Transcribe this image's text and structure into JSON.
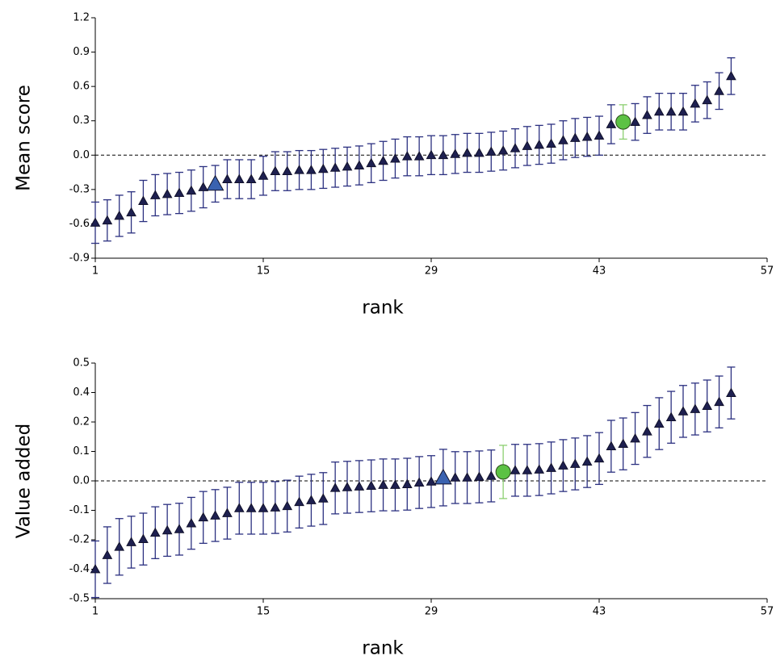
{
  "chart_data": [
    {
      "type": "scatter",
      "xlabel": "rank",
      "ylabel": "Mean score",
      "xlim": [
        1,
        57
      ],
      "xticks": [
        1,
        15,
        29,
        43,
        57
      ],
      "ylim": [
        -0.9,
        1.2
      ],
      "yticks": [
        -0.9,
        -0.6,
        -0.3,
        {
          "value": 0,
          "label": "0.0"
        },
        0.3,
        0.6,
        0.9,
        1.2
      ],
      "hline": 0,
      "series": [
        {
          "color": "#1e2050",
          "bar_color": "#2b3080",
          "marker": "triangle",
          "x": [
            1,
            2,
            3,
            4,
            5,
            6,
            7,
            8,
            9,
            10,
            12,
            13,
            14,
            15,
            16,
            17,
            18,
            19,
            20,
            21,
            22,
            23,
            24,
            25,
            26,
            27,
            28,
            29,
            30,
            31,
            32,
            33,
            34,
            35,
            36,
            37,
            38,
            39,
            40,
            41,
            42,
            43,
            44,
            46,
            47,
            48,
            49,
            50,
            51,
            52,
            53,
            54
          ],
          "values": [
            -0.59,
            -0.57,
            -0.53,
            -0.5,
            -0.4,
            -0.35,
            -0.34,
            -0.33,
            -0.31,
            -0.28,
            -0.21,
            -0.21,
            -0.21,
            -0.18,
            -0.14,
            -0.14,
            -0.13,
            -0.13,
            -0.12,
            -0.11,
            -0.1,
            -0.09,
            -0.07,
            -0.05,
            -0.03,
            -0.01,
            -0.01,
            0,
            0,
            0.01,
            0.02,
            0.02,
            0.03,
            0.04,
            0.06,
            0.08,
            0.09,
            0.1,
            0.13,
            0.15,
            0.16,
            0.17,
            0.27,
            0.29,
            0.35,
            0.38,
            0.38,
            0.38,
            0.45,
            0.48,
            0.56,
            0.69
          ],
          "errors": [
            0.18,
            0.18,
            0.18,
            0.18,
            0.18,
            0.18,
            0.18,
            0.18,
            0.18,
            0.18,
            0.17,
            0.17,
            0.17,
            0.17,
            0.17,
            0.17,
            0.17,
            0.17,
            0.17,
            0.17,
            0.17,
            0.17,
            0.17,
            0.17,
            0.17,
            0.17,
            0.17,
            0.17,
            0.17,
            0.17,
            0.17,
            0.17,
            0.17,
            0.17,
            0.17,
            0.17,
            0.17,
            0.17,
            0.17,
            0.17,
            0.17,
            0.17,
            0.17,
            0.16,
            0.16,
            0.16,
            0.16,
            0.16,
            0.16,
            0.16,
            0.16,
            0.16
          ]
        },
        {
          "color": "#3a62b0",
          "bar_color": "#2b3080",
          "marker": "big-triangle",
          "x": [
            11
          ],
          "values": [
            -0.25
          ],
          "errors": [
            0.16
          ]
        },
        {
          "color": "#5cc244",
          "bar_color": "#8ccf70",
          "marker": "circle",
          "x": [
            45
          ],
          "values": [
            0.29
          ],
          "errors": [
            0.15
          ]
        }
      ]
    },
    {
      "type": "scatter",
      "xlabel": "rank",
      "ylabel": "Value added",
      "xlim": [
        1,
        57
      ],
      "xticks": [
        1,
        15,
        29,
        43,
        57
      ],
      "ylim": [
        -0.5,
        0.5
      ],
      "yticks": [
        -0.5,
        {
          "value": -0.375,
          "label": "-0.4"
        },
        {
          "value": -0.25,
          "label": "-0.2"
        },
        {
          "value": -0.125,
          "label": "-0.1"
        },
        {
          "value": 0,
          "label": "0.0"
        },
        {
          "value": 0.125,
          "label": "0.1"
        },
        {
          "value": 0.25,
          "label": "0.2"
        },
        {
          "value": 0.375,
          "label": "0.4"
        },
        0.5
      ],
      "hline": 0,
      "series": [
        {
          "color": "#1e2050",
          "bar_color": "#2b3080",
          "marker": "triangle",
          "x": [
            1,
            2,
            3,
            4,
            5,
            6,
            7,
            8,
            9,
            10,
            11,
            12,
            13,
            14,
            15,
            16,
            17,
            18,
            19,
            20,
            21,
            22,
            23,
            24,
            25,
            26,
            27,
            28,
            29,
            31,
            32,
            33,
            34,
            36,
            37,
            38,
            39,
            40,
            41,
            42,
            43,
            44,
            45,
            46,
            47,
            48,
            49,
            50,
            51,
            52,
            53,
            54
          ],
          "values": [
            -0.375,
            -0.315,
            -0.28,
            -0.26,
            -0.247,
            -0.22,
            -0.21,
            -0.205,
            -0.18,
            -0.155,
            -0.147,
            -0.137,
            -0.116,
            -0.116,
            -0.116,
            -0.113,
            -0.107,
            -0.09,
            -0.082,
            -0.075,
            -0.03,
            -0.027,
            -0.024,
            -0.021,
            -0.017,
            -0.017,
            -0.014,
            -0.007,
            -0.003,
            0.014,
            0.014,
            0.017,
            0.021,
            0.045,
            0.045,
            0.048,
            0.055,
            0.065,
            0.072,
            0.082,
            0.095,
            0.147,
            0.157,
            0.18,
            0.21,
            0.243,
            0.27,
            0.295,
            0.305,
            0.318,
            0.335,
            0.373
          ],
          "errors": [
            0.12,
            0.12,
            0.12,
            0.11,
            0.11,
            0.11,
            0.11,
            0.11,
            0.11,
            0.11,
            0.11,
            0.11,
            0.11,
            0.11,
            0.11,
            0.11,
            0.11,
            0.11,
            0.11,
            0.11,
            0.11,
            0.11,
            0.11,
            0.11,
            0.11,
            0.11,
            0.11,
            0.11,
            0.11,
            0.11,
            0.11,
            0.11,
            0.11,
            0.11,
            0.11,
            0.11,
            0.11,
            0.11,
            0.11,
            0.11,
            0.11,
            0.11,
            0.11,
            0.11,
            0.11,
            0.11,
            0.11,
            0.11,
            0.11,
            0.11,
            0.11,
            0.11
          ]
        },
        {
          "color": "#3a62b0",
          "bar_color": "#2b3080",
          "marker": "big-triangle",
          "x": [
            30
          ],
          "values": [
            0.014
          ],
          "errors": [
            0.12
          ]
        },
        {
          "color": "#5cc244",
          "bar_color": "#8ccf70",
          "marker": "circle",
          "x": [
            35
          ],
          "values": [
            0.038
          ],
          "errors": [
            0.113
          ]
        }
      ]
    }
  ]
}
